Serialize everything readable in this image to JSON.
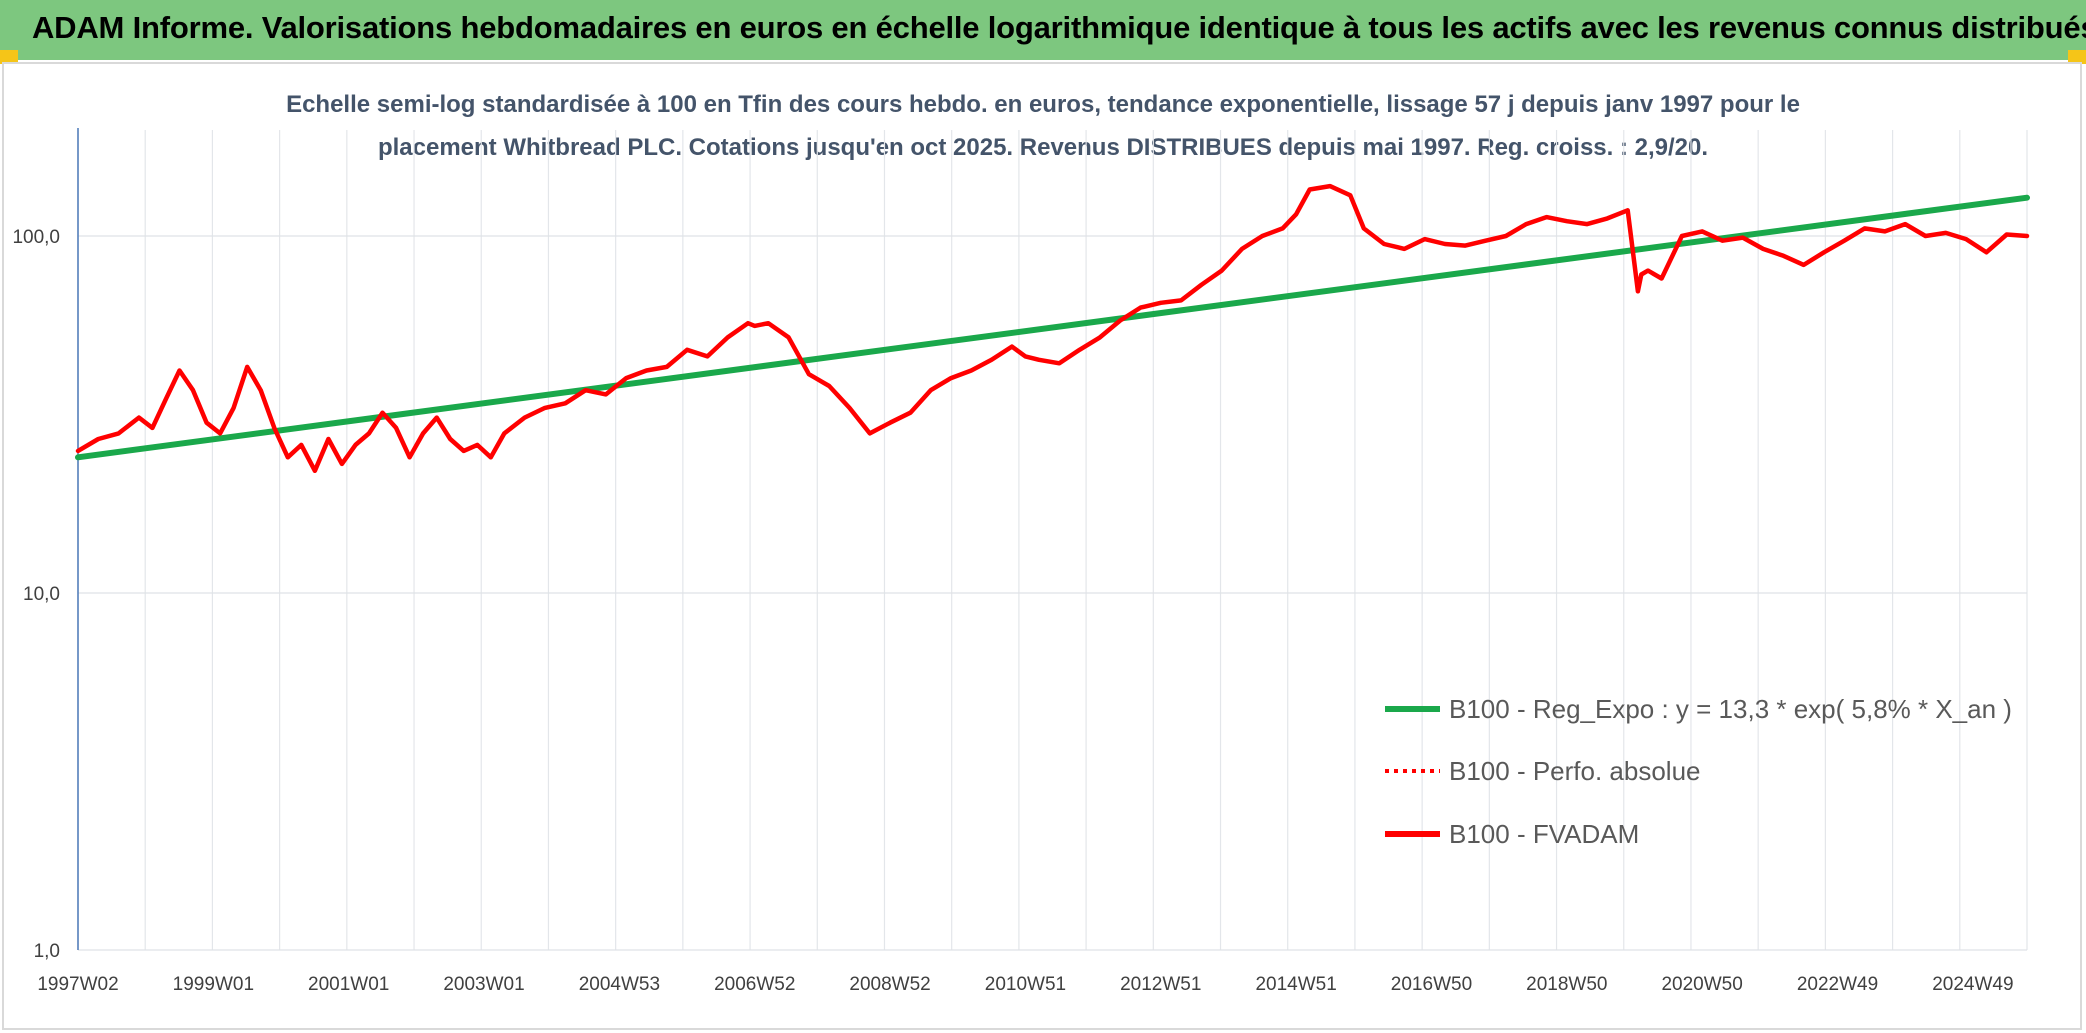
{
  "header": {
    "title": "ADAM Informe. Valorisations hebdomadaires en euros en échelle logarithmique identique à tous les actifs avec les revenus connus distribués",
    "background": "#7dc77f",
    "corner_color": "#f5c518"
  },
  "chart_data": {
    "type": "line",
    "title_line1": "Echelle semi-log standardisée à 100 en Tfin des cours hebdo. en euros, tendance exponentielle, lissage 57 j depuis janv 1997 pour le",
    "title_line2": "placement Whitbread PLC. Cotations jusqu'en oct 2025. Revenus DISTRIBUES depuis mai 1997. Reg. croiss. : 2,9/20.",
    "xlabel": "",
    "ylabel": "",
    "y_scale": "log",
    "ylim": [
      1,
      200
    ],
    "y_ticks": [
      {
        "value": 1,
        "label": "1,0"
      },
      {
        "value": 10,
        "label": "10,0"
      },
      {
        "value": 100,
        "label": "100,0"
      }
    ],
    "xlim": [
      1997.0,
      2025.8
    ],
    "x_ticks": [
      {
        "value": 1997.0,
        "label": "1997W02"
      },
      {
        "value": 1999.0,
        "label": "1999W01"
      },
      {
        "value": 2001.0,
        "label": "2001W01"
      },
      {
        "value": 2003.0,
        "label": "2003W01"
      },
      {
        "value": 2005.0,
        "label": "2004W53"
      },
      {
        "value": 2007.0,
        "label": "2006W52"
      },
      {
        "value": 2009.0,
        "label": "2008W52"
      },
      {
        "value": 2011.0,
        "label": "2010W51"
      },
      {
        "value": 2013.0,
        "label": "2012W51"
      },
      {
        "value": 2015.0,
        "label": "2014W51"
      },
      {
        "value": 2017.0,
        "label": "2016W50"
      },
      {
        "value": 2019.0,
        "label": "2018W50"
      },
      {
        "value": 2021.0,
        "label": "2020W50"
      },
      {
        "value": 2023.0,
        "label": "2022W49"
      },
      {
        "value": 2025.0,
        "label": "2024W49"
      }
    ],
    "grid": true,
    "legend_position": "bottom-right",
    "series": [
      {
        "name": "B100 - Reg_Expo : y = 13,3 * exp( 5,8% *  X_an )",
        "color": "#1aa84b",
        "style": "solid",
        "x": [
          1997.0,
          2025.8
        ],
        "y": [
          24.0,
          128.0
        ]
      },
      {
        "name": "B100 - Perfo. absolue",
        "color": "#ff0000",
        "style": "dotted",
        "x": [],
        "y": []
      },
      {
        "name": "B100 - FVADAM",
        "color": "#ff0000",
        "style": "solid",
        "x": [
          1997.0,
          1997.3,
          1997.6,
          1997.9,
          1998.1,
          1998.3,
          1998.5,
          1998.7,
          1998.9,
          1999.1,
          1999.3,
          1999.5,
          1999.7,
          1999.9,
          2000.1,
          2000.3,
          2000.5,
          2000.7,
          2000.9,
          2001.1,
          2001.3,
          2001.5,
          2001.7,
          2001.9,
          2002.1,
          2002.3,
          2002.5,
          2002.7,
          2002.9,
          2003.1,
          2003.3,
          2003.6,
          2003.9,
          2004.2,
          2004.5,
          2004.8,
          2005.1,
          2005.4,
          2005.7,
          2006.0,
          2006.3,
          2006.6,
          2006.9,
          2007.0,
          2007.2,
          2007.5,
          2007.8,
          2008.1,
          2008.4,
          2008.7,
          2009.0,
          2009.3,
          2009.6,
          2009.9,
          2010.2,
          2010.5,
          2010.8,
          2011.0,
          2011.2,
          2011.5,
          2011.8,
          2012.1,
          2012.4,
          2012.7,
          2013.0,
          2013.3,
          2013.6,
          2013.9,
          2014.2,
          2014.5,
          2014.8,
          2015.0,
          2015.2,
          2015.5,
          2015.8,
          2016.0,
          2016.3,
          2016.6,
          2016.9,
          2017.2,
          2017.5,
          2017.8,
          2018.1,
          2018.4,
          2018.7,
          2019.0,
          2019.3,
          2019.6,
          2019.9,
          2020.05,
          2020.1,
          2020.2,
          2020.4,
          2020.7,
          2021.0,
          2021.3,
          2021.6,
          2021.9,
          2022.2,
          2022.5,
          2022.8,
          2023.1,
          2023.4,
          2023.7,
          2024.0,
          2024.3,
          2024.6,
          2024.9,
          2025.2,
          2025.5,
          2025.8
        ],
        "y": [
          25,
          27,
          28,
          31,
          29,
          35,
          42,
          37,
          30,
          28,
          33,
          43,
          37,
          29,
          24,
          26,
          22,
          27,
          23,
          26,
          28,
          32,
          29,
          24,
          28,
          31,
          27,
          25,
          26,
          24,
          28,
          31,
          33,
          34,
          37,
          36,
          40,
          42,
          43,
          48,
          46,
          52,
          57,
          56,
          57,
          52,
          41,
          38,
          33,
          28,
          30,
          32,
          37,
          40,
          42,
          45,
          49,
          46,
          45,
          44,
          48,
          52,
          58,
          63,
          65,
          66,
          73,
          80,
          92,
          100,
          105,
          115,
          135,
          138,
          130,
          105,
          95,
          92,
          98,
          95,
          94,
          97,
          100,
          108,
          113,
          110,
          108,
          112,
          118,
          70,
          78,
          80,
          76,
          100,
          103,
          97,
          99,
          92,
          88,
          83,
          90,
          97,
          105,
          103,
          108,
          100,
          102,
          98,
          90,
          101,
          100
        ]
      }
    ]
  }
}
